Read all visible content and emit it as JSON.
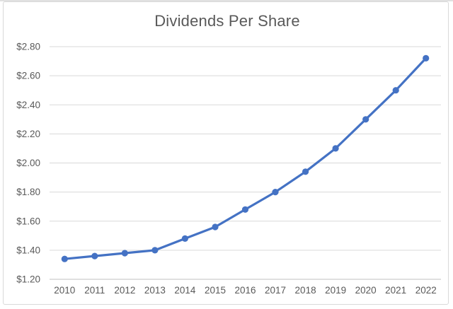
{
  "chart_data": {
    "type": "line",
    "title": "Dividends Per Share",
    "categories": [
      "2010",
      "2011",
      "2012",
      "2013",
      "2014",
      "2015",
      "2016",
      "2017",
      "2018",
      "2019",
      "2020",
      "2021",
      "2022"
    ],
    "series": [
      {
        "name": "Dividends Per Share",
        "values": [
          1.34,
          1.36,
          1.38,
          1.4,
          1.48,
          1.56,
          1.68,
          1.8,
          1.94,
          2.1,
          2.3,
          2.5,
          2.72
        ]
      }
    ],
    "xlabel": "",
    "ylabel": "",
    "ylim": [
      1.2,
      2.8
    ],
    "y_tick_step": 0.2,
    "y_tick_labels": [
      "$1.20",
      "$1.40",
      "$1.60",
      "$1.80",
      "$2.00",
      "$2.20",
      "$2.40",
      "$2.60",
      "$2.80"
    ],
    "grid": "horizontal",
    "legend": "none",
    "marker": "circle",
    "line_smoothing": false,
    "colors": {
      "line": "#4472C4",
      "marker": "#4472C4",
      "title_text": "#595959",
      "tick_text": "#595959",
      "gridline": "#d9d9d9",
      "axis_line": "#bfbfbf",
      "chart_border": "#d9d9d9",
      "background": "#ffffff"
    }
  }
}
